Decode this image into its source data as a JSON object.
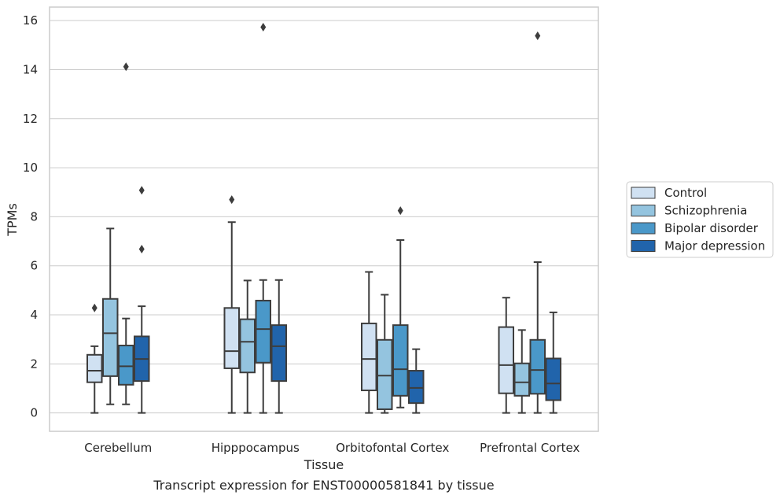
{
  "chart_data": {
    "type": "box",
    "title": "",
    "caption": "Transcript expression for ENST00000581841 by tissue",
    "xlabel": "Tissue",
    "ylabel": "TPMs",
    "ylim": [
      -0.75,
      16.55
    ],
    "yticks": [
      0,
      2,
      4,
      6,
      8,
      10,
      12,
      14,
      16
    ],
    "grid": "horizontal",
    "legend_position": "right",
    "categories": [
      "Cerebellum",
      "Hipppocampus",
      "Orbitofontal Cortex",
      "Prefrontal Cortex"
    ],
    "series": [
      {
        "name": "Control",
        "color": "#d0e1f2",
        "boxes": [
          {
            "whislo": 0.0,
            "q1": 1.25,
            "med": 1.72,
            "q3": 2.37,
            "whishi": 2.72,
            "fliers": [
              4.28
            ]
          },
          {
            "whislo": 0.0,
            "q1": 1.82,
            "med": 2.52,
            "q3": 4.28,
            "whishi": 7.78,
            "fliers": [
              8.7
            ]
          },
          {
            "whislo": 0.0,
            "q1": 0.92,
            "med": 2.2,
            "q3": 3.65,
            "whishi": 5.75,
            "fliers": []
          },
          {
            "whislo": 0.0,
            "q1": 0.8,
            "med": 1.95,
            "q3": 3.5,
            "whishi": 4.7,
            "fliers": []
          }
        ]
      },
      {
        "name": "Schizophrenia",
        "color": "#94c4df",
        "boxes": [
          {
            "whislo": 0.35,
            "q1": 1.5,
            "med": 3.25,
            "q3": 4.65,
            "whishi": 7.52,
            "fliers": []
          },
          {
            "whislo": 0.0,
            "q1": 1.65,
            "med": 2.9,
            "q3": 3.82,
            "whishi": 5.4,
            "fliers": []
          },
          {
            "whislo": 0.0,
            "q1": 0.15,
            "med": 1.52,
            "q3": 2.98,
            "whishi": 4.82,
            "fliers": []
          },
          {
            "whislo": 0.0,
            "q1": 0.7,
            "med": 1.25,
            "q3": 2.02,
            "whishi": 3.38,
            "fliers": []
          }
        ]
      },
      {
        "name": "Bipolar disorder",
        "color": "#4a98c9",
        "boxes": [
          {
            "whislo": 0.35,
            "q1": 1.15,
            "med": 1.9,
            "q3": 2.75,
            "whishi": 3.85,
            "fliers": [
              14.12
            ]
          },
          {
            "whislo": 0.0,
            "q1": 2.05,
            "med": 3.42,
            "q3": 4.58,
            "whishi": 5.42,
            "fliers": [
              15.73
            ]
          },
          {
            "whislo": 0.22,
            "q1": 0.7,
            "med": 1.78,
            "q3": 3.58,
            "whishi": 7.05,
            "fliers": [
              8.25
            ]
          },
          {
            "whislo": 0.0,
            "q1": 0.78,
            "med": 1.75,
            "q3": 2.98,
            "whishi": 6.15,
            "fliers": [
              15.38
            ]
          }
        ]
      },
      {
        "name": "Major depression",
        "color": "#2164ab",
        "boxes": [
          {
            "whislo": 0.0,
            "q1": 1.3,
            "med": 2.2,
            "q3": 3.12,
            "whishi": 4.35,
            "fliers": [
              6.68,
              9.08
            ]
          },
          {
            "whislo": 0.0,
            "q1": 1.3,
            "med": 2.72,
            "q3": 3.58,
            "whishi": 5.42,
            "fliers": []
          },
          {
            "whislo": 0.0,
            "q1": 0.4,
            "med": 1.02,
            "q3": 1.72,
            "whishi": 2.6,
            "fliers": []
          },
          {
            "whislo": 0.0,
            "q1": 0.52,
            "med": 1.2,
            "q3": 2.22,
            "whishi": 4.1,
            "fliers": []
          }
        ]
      }
    ]
  }
}
